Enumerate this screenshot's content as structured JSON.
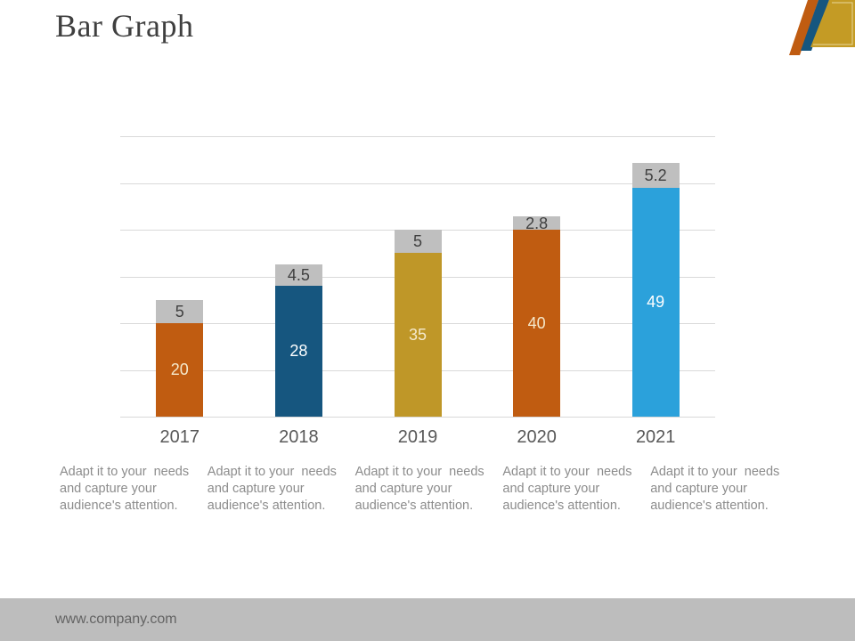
{
  "slide": {
    "title": "Bar Graph",
    "footer_url": "www.company.com"
  },
  "chart_data": {
    "type": "bar",
    "stacked": true,
    "title": "",
    "xlabel": "",
    "ylabel": "",
    "categories": [
      "2017",
      "2018",
      "2019",
      "2020",
      "2021"
    ],
    "series": [
      {
        "name": "main-value",
        "values": [
          20,
          28,
          35,
          40,
          49
        ]
      },
      {
        "name": "top-segment-value",
        "values": [
          5,
          4.5,
          5,
          2.8,
          5.2
        ]
      }
    ],
    "ylim": [
      0,
      60
    ],
    "grid_step": 10,
    "grid": true,
    "legend": false,
    "colors": {
      "bar_colors": [
        "#C05C11",
        "#16567F",
        "#BF9728",
        "#C05C11",
        "#2BA1DB"
      ],
      "value_label_colors": [
        "#F5E9CC",
        "#FFFFFF",
        "#F5E9CC",
        "#F5E9CC",
        "#FFFFFF"
      ],
      "top_segment_color": "#BFBFBF",
      "top_segment_label_color": "#404040",
      "gridline_color": "#D9D9D9",
      "axis_label_color": "#595959"
    }
  },
  "descriptions": [
    "Adapt it to your  needs\nand capture your\naudience's attention.",
    "Adapt it to your  needs\nand capture your\naudience's attention.",
    "Adapt it to your  needs\nand capture your\naudience's attention.",
    "Adapt it to your  needs\nand capture your\naudience's attention.",
    "Adapt it to your  needs\nand capture your\naudience's attention."
  ],
  "decoration": {
    "gold_color": "#C49B25",
    "blue_color": "#16567F",
    "orange_color": "#C05C11",
    "inner_line_color": "#E7D79A"
  }
}
